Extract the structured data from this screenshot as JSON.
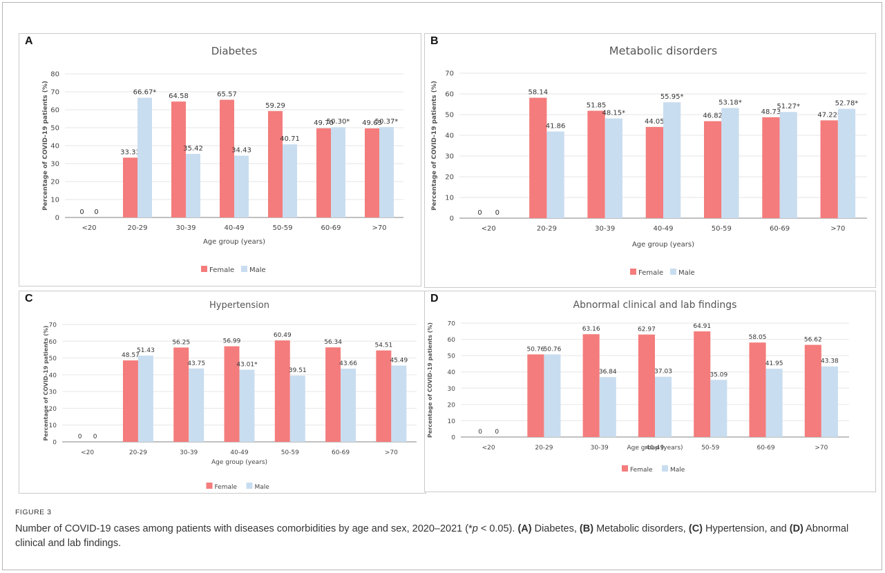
{
  "legend": {
    "female": "Female",
    "male": "Male"
  },
  "colors": {
    "female": "#f47c7c",
    "male": "#c9ddf0"
  },
  "figure": {
    "label": "FIGURE 3",
    "caption_pre": "Number of COVID-19 cases among patients with diseases comorbidities by age and sex, 2020–2021 (*",
    "caption_p": "p",
    "caption_mid": " < 0.05). ",
    "a_tag": "(A)",
    "a_text": " Diabetes, ",
    "b_tag": "(B)",
    "b_text": " Metabolic disorders, ",
    "c_tag": "(C)",
    "c_text": " Hypertension, and ",
    "d_tag": "(D)",
    "d_text": " Abnormal clinical and lab findings."
  },
  "chart_data": [
    {
      "panel": "A",
      "type": "bar",
      "title": "Diabetes",
      "xlabel": "Age group (years)",
      "ylabel": "Percentage of COVID-19 patients (%)",
      "ylim": [
        0,
        80
      ],
      "yticks": [
        "0",
        "10",
        "20",
        "30",
        "40",
        "50",
        "60",
        "70",
        "80"
      ],
      "categories": [
        "<20",
        "20-29",
        "30-39",
        "40-49",
        "50-59",
        "60-69",
        ">70"
      ],
      "series": [
        {
          "name": "Female",
          "values": [
            0,
            33.33,
            64.58,
            65.57,
            59.29,
            49.7,
            49.63
          ],
          "labels": [
            "0",
            "33.33",
            "64.58",
            "65.57",
            "59.29",
            "49.70",
            "49.63"
          ]
        },
        {
          "name": "Male",
          "values": [
            0,
            66.67,
            35.42,
            34.43,
            40.71,
            50.3,
            50.37
          ],
          "labels": [
            "0",
            "66.67*",
            "35.42",
            "34.43",
            "40.71",
            "50.30*",
            "50.37*"
          ]
        }
      ],
      "legend_position": "bottom",
      "grid": true
    },
    {
      "panel": "B",
      "type": "bar",
      "title": "Metabolic disorders",
      "xlabel": "Age group (years)",
      "ylabel": "Percentage of COVID-19 patients (%)",
      "ylim": [
        0,
        70
      ],
      "yticks": [
        "0",
        "10",
        "20",
        "30",
        "40",
        "50",
        "60",
        "70"
      ],
      "categories": [
        "<20",
        "20-29",
        "30-39",
        "40-49",
        "50-59",
        "60-69",
        ">70"
      ],
      "series": [
        {
          "name": "Female",
          "values": [
            0,
            58.14,
            51.85,
            44.05,
            46.82,
            48.73,
            47.22
          ],
          "labels": [
            "0",
            "58.14",
            "51.85",
            "44.05",
            "46.82",
            "48.73",
            "47.22*"
          ]
        },
        {
          "name": "Male",
          "values": [
            0,
            41.86,
            48.15,
            55.95,
            53.18,
            51.27,
            52.78
          ],
          "labels": [
            "0",
            "41.86",
            "48.15*",
            "55.95*",
            "53.18*",
            "51.27*",
            "52.78*"
          ]
        }
      ],
      "legend_position": "bottom",
      "grid": true
    },
    {
      "panel": "C",
      "type": "bar",
      "title": "Hypertension",
      "xlabel": "Age group (years)",
      "ylabel": "Percentage of COVID-19 patients (%)",
      "ylim": [
        0,
        70
      ],
      "yticks": [
        "0",
        "10",
        "20",
        "30",
        "40",
        "50",
        "60",
        "70"
      ],
      "categories": [
        "<20",
        "20-29",
        "30-39",
        "40-49",
        "50-59",
        "60-69",
        ">70"
      ],
      "series": [
        {
          "name": "Female",
          "values": [
            0,
            48.57,
            56.25,
            56.99,
            60.49,
            56.34,
            54.51
          ],
          "labels": [
            "0",
            "48.57",
            "56.25",
            "56.99",
            "60.49",
            "56.34",
            "54.51"
          ]
        },
        {
          "name": "Male",
          "values": [
            0,
            51.43,
            43.75,
            43.01,
            39.51,
            43.66,
            45.49
          ],
          "labels": [
            "0",
            "51.43",
            "43.75",
            "43.01*",
            "39.51",
            "43.66",
            "45.49"
          ]
        }
      ],
      "legend_position": "bottom",
      "grid": true
    },
    {
      "panel": "D",
      "type": "bar",
      "title": "Abnormal clinical and lab findings",
      "xlabel": "Age group (years)",
      "ylabel": "Percentage of COVID-19 patients (%)",
      "ylim": [
        0,
        70
      ],
      "yticks": [
        "0",
        "10",
        "20",
        "30",
        "40",
        "50",
        "60",
        "70"
      ],
      "categories": [
        "<20",
        "20-29",
        "30-39",
        "40-49",
        "50-59",
        "60-69",
        ">70"
      ],
      "series": [
        {
          "name": "Female",
          "values": [
            0,
            50.76,
            63.16,
            62.97,
            64.91,
            58.05,
            56.62
          ],
          "labels": [
            "0",
            "50.76",
            "63.16",
            "62.97",
            "64.91",
            "58.05",
            "56.62"
          ]
        },
        {
          "name": "Male",
          "values": [
            0,
            50.76,
            36.84,
            37.03,
            35.09,
            41.95,
            43.38
          ],
          "labels": [
            "0",
            "50.76",
            "36.84",
            "37.03",
            "35.09",
            "41.95",
            "43.38"
          ]
        }
      ],
      "legend_position": "bottom",
      "grid": true
    }
  ]
}
